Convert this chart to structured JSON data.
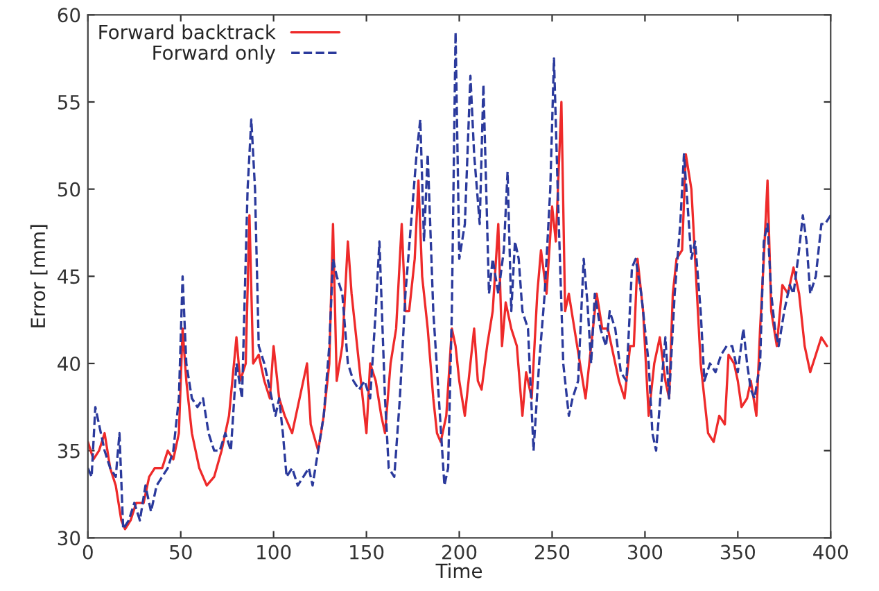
{
  "chart_data": {
    "type": "line",
    "xlabel": "Time",
    "ylabel": "Error [mm]",
    "xlim": [
      0,
      400
    ],
    "ylim": [
      30,
      60
    ],
    "xticks": [
      0,
      50,
      100,
      150,
      200,
      250,
      300,
      350,
      400
    ],
    "yticks": [
      30,
      35,
      40,
      45,
      50,
      55,
      60
    ],
    "grid": false,
    "legend": "top left",
    "series": [
      {
        "name": "Forward backtrack",
        "color": "#ee2a2a",
        "line_style": "solid",
        "x": [
          0,
          3,
          6,
          9,
          12,
          15,
          18,
          20,
          23,
          26,
          30,
          33,
          36,
          40,
          43,
          46,
          49,
          51,
          53,
          56,
          60,
          64,
          68,
          72,
          76,
          80,
          82,
          85,
          87,
          89,
          92,
          95,
          98,
          100,
          103,
          106,
          110,
          114,
          118,
          120,
          124,
          127,
          130,
          132,
          134,
          137,
          140,
          142,
          145,
          148,
          150,
          152,
          155,
          158,
          160,
          163,
          166,
          169,
          171,
          173,
          176,
          178,
          180,
          183,
          186,
          188,
          190,
          193,
          196,
          198,
          200,
          203,
          206,
          208,
          210,
          212,
          215,
          218,
          221,
          223,
          225,
          228,
          231,
          234,
          236,
          239,
          242,
          244,
          247,
          250,
          252,
          255,
          257,
          259,
          262,
          265,
          268,
          271,
          274,
          277,
          280,
          283,
          286,
          289,
          292,
          294,
          296,
          299,
          302,
          305,
          308,
          311,
          313,
          315,
          317,
          320,
          322,
          325,
          328,
          330,
          332,
          334,
          337,
          340,
          343,
          345,
          348,
          350,
          352,
          355,
          357,
          360,
          362,
          364,
          366,
          368,
          371,
          374,
          377,
          380,
          383,
          386,
          389,
          392,
          395,
          398
        ],
        "values": [
          35.5,
          34.5,
          35,
          36,
          34,
          33,
          31,
          30.5,
          31,
          32,
          32,
          33.5,
          34,
          34,
          35,
          34.5,
          36,
          42,
          39,
          36,
          34,
          33,
          33.5,
          35,
          37,
          41.5,
          39,
          40,
          48.5,
          40,
          40.5,
          39,
          38,
          41,
          38,
          37,
          36,
          38,
          40,
          36.5,
          35,
          37,
          40,
          48,
          39,
          41,
          47,
          44,
          41,
          38,
          36,
          40,
          39,
          37,
          36,
          40,
          42,
          48,
          43,
          43,
          46,
          50.5,
          45,
          42,
          38,
          36,
          35.5,
          37,
          42,
          41,
          39,
          37,
          40,
          42,
          39,
          38.5,
          41,
          43,
          48,
          41,
          43.5,
          42,
          41,
          37,
          39.5,
          38,
          44,
          46.5,
          44,
          49,
          47,
          55,
          43,
          44,
          42,
          40,
          38,
          41,
          44,
          42,
          42,
          40.5,
          39,
          38,
          41,
          41,
          46,
          43,
          37,
          40,
          41.5,
          39,
          38,
          44,
          46,
          46.5,
          52,
          50,
          44,
          40,
          38,
          36,
          35.5,
          37,
          36.5,
          40.5,
          40,
          39,
          37.5,
          38,
          39,
          37,
          42,
          46,
          50.5,
          43,
          41,
          44.5,
          44,
          45.5,
          44,
          41,
          39.5,
          40.5,
          41.5,
          41
        ]
      },
      {
        "name": "Forward only",
        "color": "#2b3a9c",
        "line_style": "dashed",
        "x": [
          0,
          2,
          4,
          6,
          9,
          12,
          15,
          17,
          19,
          22,
          25,
          28,
          31,
          34,
          37,
          40,
          43,
          46,
          49,
          51,
          53,
          56,
          59,
          62,
          65,
          68,
          71,
          74,
          77,
          80,
          83,
          86,
          88,
          90,
          92,
          95,
          98,
          101,
          103,
          105,
          107,
          110,
          113,
          116,
          119,
          121,
          124,
          127,
          130,
          132,
          134,
          137,
          140,
          143,
          146,
          149,
          152,
          155,
          157,
          160,
          162,
          165,
          168,
          171,
          174,
          177,
          179,
          181,
          183,
          186,
          189,
          192,
          194,
          196,
          198,
          200,
          203,
          206,
          208,
          211,
          213,
          216,
          218,
          221,
          224,
          226,
          228,
          230,
          232,
          234,
          237,
          240,
          243,
          246,
          249,
          251,
          253,
          256,
          259,
          261,
          264,
          267,
          269,
          271,
          273,
          276,
          279,
          281,
          284,
          287,
          290,
          293,
          295,
          298,
          300,
          302,
          304,
          306,
          309,
          311,
          313,
          316,
          319,
          321,
          323,
          325,
          327,
          330,
          332,
          335,
          338,
          341,
          344,
          347,
          350,
          353,
          355,
          357,
          359,
          362,
          364,
          366,
          368,
          370,
          372,
          375,
          378,
          380,
          383,
          385,
          387,
          389,
          392,
          395,
          397,
          400
        ],
        "values": [
          34,
          33.5,
          37.5,
          36.5,
          35,
          34,
          33.5,
          36,
          30.5,
          31,
          32,
          31,
          33,
          31.5,
          33,
          33.5,
          34,
          35,
          38,
          45,
          40,
          38,
          37.5,
          38,
          36,
          35,
          35,
          36,
          35,
          40,
          38,
          50,
          54,
          50,
          41,
          40,
          38.5,
          37,
          38,
          36,
          33.5,
          34,
          33,
          33.5,
          34,
          33,
          35,
          37,
          41,
          46,
          45,
          44,
          40,
          39,
          38.5,
          39,
          38,
          43,
          47,
          38,
          34,
          33.5,
          38,
          44,
          48,
          52,
          54,
          47,
          52,
          43,
          38,
          33,
          34,
          43,
          59,
          46,
          48,
          56.5,
          52,
          48,
          56,
          44,
          46,
          44,
          46.5,
          51,
          43,
          47,
          46,
          43,
          42,
          35,
          40,
          44,
          50,
          57.5,
          50,
          40,
          37,
          38,
          39,
          46,
          43.5,
          40,
          44,
          42,
          41,
          43,
          42,
          39.5,
          39,
          45.5,
          46,
          44,
          42,
          40,
          36,
          35,
          39,
          41.5,
          38,
          44,
          48,
          52,
          49,
          46,
          47,
          43,
          39,
          40,
          39.5,
          40.5,
          41,
          41,
          39.5,
          42,
          40,
          38.5,
          38,
          40,
          47,
          48,
          44,
          42,
          41,
          43,
          44.5,
          44,
          46.5,
          48.5,
          47,
          44,
          45,
          48,
          48,
          48.5
        ]
      }
    ]
  }
}
